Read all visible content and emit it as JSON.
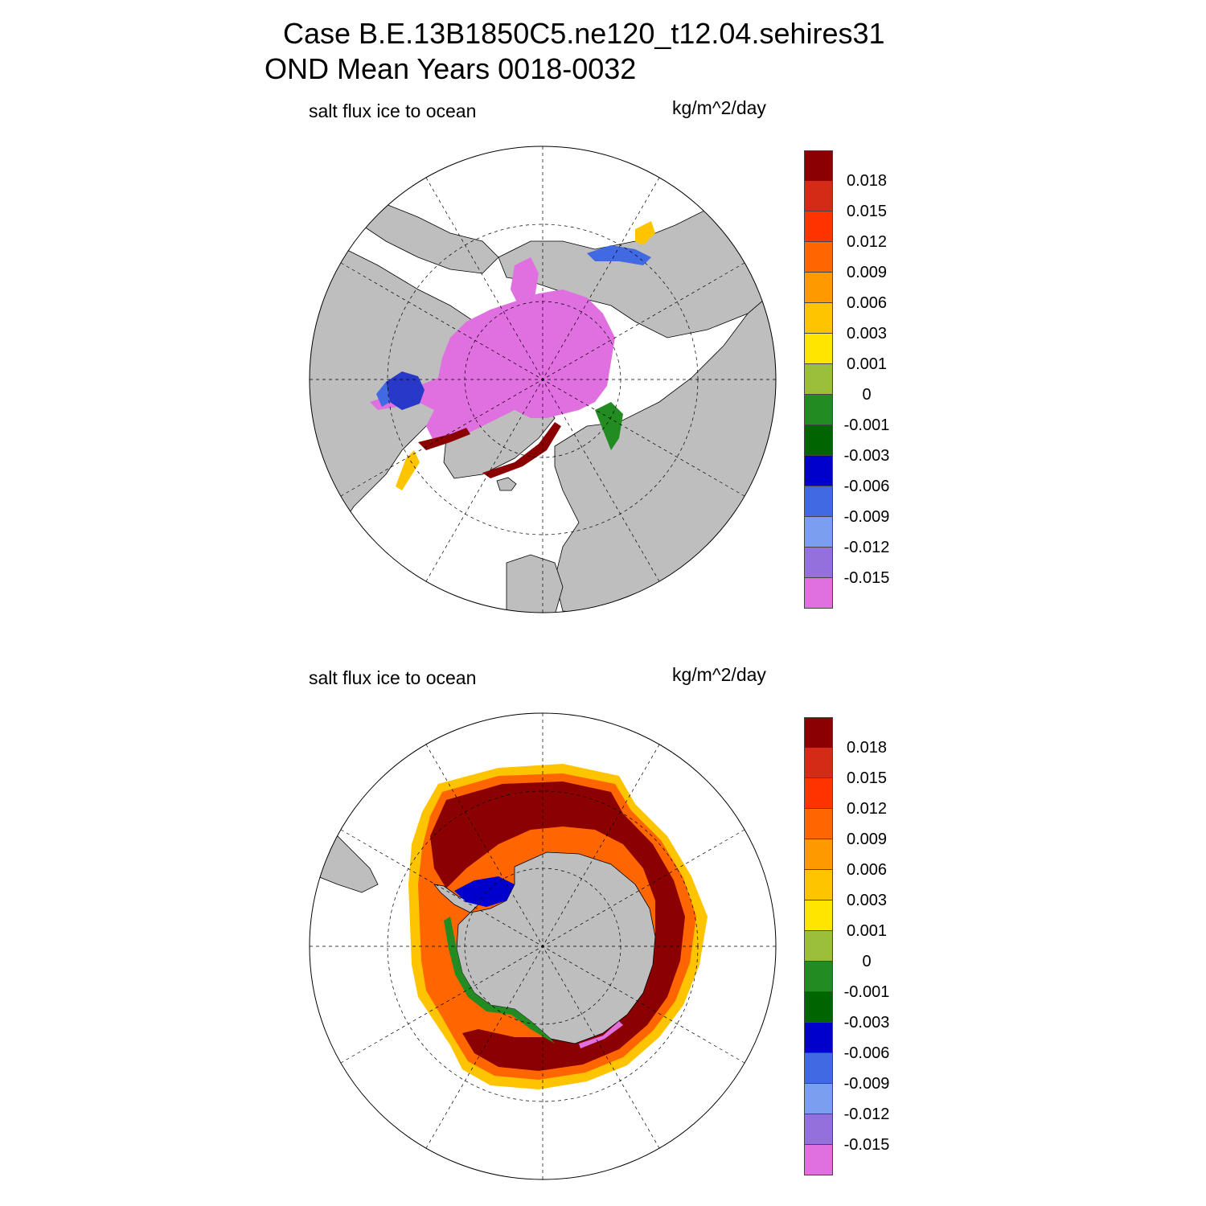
{
  "title": {
    "line1": "Case B.E.13B1850C5.ne120_t12.04.sehires31",
    "line2": "OND Mean   Years 0018-0032"
  },
  "chart_data": [
    {
      "type": "heatmap",
      "projection": "polar stereographic",
      "hemisphere": "north",
      "left_label": "salt flux ice to ocean",
      "units": "kg/m^2/day",
      "colorbar": {
        "levels": [
          "0.018",
          "0.015",
          "0.012",
          "0.009",
          "0.006",
          "0.003",
          "0.001",
          "0",
          "-0.001",
          "-0.003",
          "-0.006",
          "-0.009",
          "-0.012",
          "-0.015"
        ],
        "colors": [
          "#8b0000",
          "#d42b16",
          "#ff3300",
          "#ff6600",
          "#ff9900",
          "#ffc400",
          "#ffe600",
          "#9bbf3a",
          "#228b22",
          "#006400",
          "#0000cd",
          "#4169e1",
          "#7b9ef0",
          "#9370db",
          "#e070e0"
        ]
      }
    },
    {
      "type": "heatmap",
      "projection": "polar stereographic",
      "hemisphere": "south",
      "left_label": "salt flux ice to ocean",
      "units": "kg/m^2/day",
      "colorbar": {
        "levels": [
          "0.018",
          "0.015",
          "0.012",
          "0.009",
          "0.006",
          "0.003",
          "0.001",
          "0",
          "-0.001",
          "-0.003",
          "-0.006",
          "-0.009",
          "-0.012",
          "-0.015"
        ],
        "colors": [
          "#8b0000",
          "#d42b16",
          "#ff3300",
          "#ff6600",
          "#ff9900",
          "#ffc400",
          "#ffe600",
          "#9bbf3a",
          "#228b22",
          "#006400",
          "#0000cd",
          "#4169e1",
          "#7b9ef0",
          "#9370db",
          "#e070e0"
        ]
      }
    }
  ]
}
